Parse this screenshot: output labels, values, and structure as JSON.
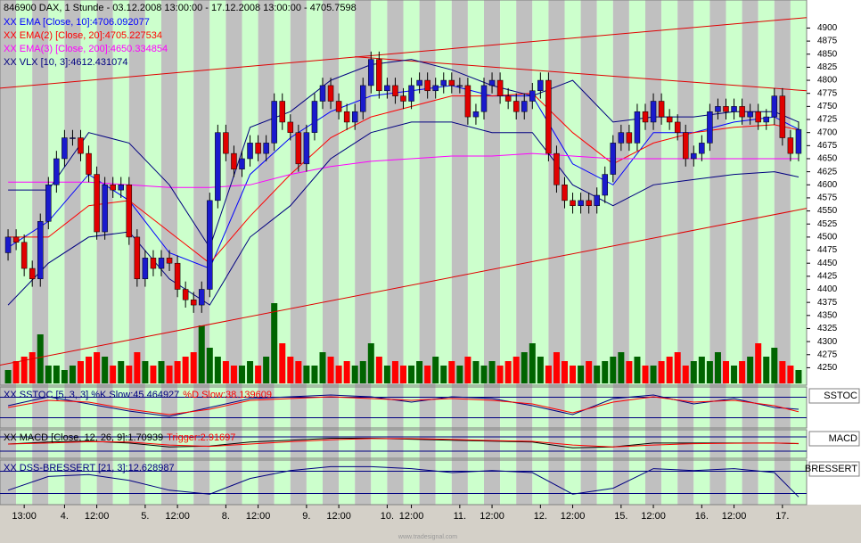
{
  "chart_data": {
    "type": "candlestick",
    "title": "846900  DAX, 1 Stunde - 03.12.2008 13:00:00 - 17.12.2008 13:00:00 - 4705.7598",
    "footer": "www.tradesignal.com",
    "up_color": "#1a1acc",
    "down_color": "#e00000",
    "volume_up_color": "#006400",
    "volume_down_color": "#ff0000",
    "xlim": [
      -1,
      99
    ],
    "ylim": [
      4220,
      4940
    ],
    "yticks": [
      4250,
      4275,
      4300,
      4325,
      4350,
      4375,
      4400,
      4425,
      4450,
      4475,
      4500,
      4525,
      4550,
      4575,
      4600,
      4625,
      4650,
      4675,
      4700,
      4725,
      4750,
      4775,
      4800,
      4825,
      4850,
      4875,
      4900
    ],
    "xticks": [
      {
        "value": 2,
        "label": "13:00"
      },
      {
        "value": 7,
        "label": "4."
      },
      {
        "value": 11,
        "label": "12:00"
      },
      {
        "value": 17,
        "label": "5."
      },
      {
        "value": 21,
        "label": "12:00"
      },
      {
        "value": 27,
        "label": "8."
      },
      {
        "value": 31,
        "label": "12:00"
      },
      {
        "value": 37,
        "label": "9."
      },
      {
        "value": 41,
        "label": "12:00"
      },
      {
        "value": 47,
        "label": "10."
      },
      {
        "value": 50,
        "label": "12:00"
      },
      {
        "value": 56,
        "label": "11."
      },
      {
        "value": 60,
        "label": "12:00"
      },
      {
        "value": 66,
        "label": "12."
      },
      {
        "value": 70,
        "label": "12:00"
      },
      {
        "value": 76,
        "label": "15."
      },
      {
        "value": 80,
        "label": "12:00"
      },
      {
        "value": 86,
        "label": "16."
      },
      {
        "value": 90,
        "label": "12:00"
      },
      {
        "value": 96,
        "label": "17."
      }
    ],
    "open": [
      4470,
      4500,
      4490,
      4440,
      4420,
      4530,
      4600,
      4650,
      4690,
      4690,
      4660,
      4620,
      4510,
      4600,
      4590,
      4600,
      4500,
      4420,
      4460,
      4440,
      4460,
      4450,
      4400,
      4380,
      4370,
      4400,
      4570,
      4700,
      4660,
      4630,
      4650,
      4680,
      4660,
      4680,
      4760,
      4720,
      4700,
      4640,
      4700,
      4760,
      4790,
      4760,
      4740,
      4720,
      4740,
      4790,
      4840,
      4780,
      4790,
      4770,
      4760,
      4790,
      4800,
      4780,
      4790,
      4800,
      4790,
      4790,
      4730,
      4740,
      4790,
      4800,
      4770,
      4760,
      4740,
      4760,
      4780,
      4800,
      4660,
      4600,
      4570,
      4560,
      4570,
      4560,
      4580,
      4620,
      4680,
      4700,
      4680,
      4740,
      4720,
      4760,
      4730,
      4720,
      4700,
      4650,
      4660,
      4680,
      4740,
      4750,
      4740,
      4750,
      4730,
      4740,
      4720,
      4730,
      4770,
      4690,
      4660
    ],
    "high": [
      4515,
      4515,
      4505,
      4455,
      4545,
      4615,
      4665,
      4705,
      4705,
      4705,
      4675,
      4635,
      4615,
      4615,
      4615,
      4615,
      4515,
      4475,
      4475,
      4475,
      4475,
      4465,
      4415,
      4395,
      4415,
      4585,
      4715,
      4715,
      4675,
      4665,
      4695,
      4695,
      4695,
      4775,
      4775,
      4735,
      4715,
      4715,
      4775,
      4805,
      4805,
      4775,
      4755,
      4755,
      4805,
      4855,
      4855,
      4805,
      4805,
      4785,
      4805,
      4815,
      4815,
      4805,
      4815,
      4815,
      4805,
      4805,
      4755,
      4805,
      4815,
      4815,
      4785,
      4775,
      4775,
      4795,
      4815,
      4815,
      4675,
      4615,
      4585,
      4585,
      4585,
      4595,
      4635,
      4695,
      4715,
      4715,
      4755,
      4755,
      4775,
      4775,
      4745,
      4735,
      4715,
      4675,
      4695,
      4755,
      4765,
      4765,
      4765,
      4765,
      4755,
      4755,
      4745,
      4785,
      4785,
      4705,
      4721
    ],
    "low": [
      4455,
      4475,
      4425,
      4405,
      4405,
      4515,
      4585,
      4635,
      4675,
      4645,
      4605,
      4495,
      4495,
      4575,
      4575,
      4485,
      4405,
      4405,
      4425,
      4425,
      4435,
      4385,
      4365,
      4355,
      4355,
      4385,
      4555,
      4645,
      4615,
      4615,
      4635,
      4645,
      4645,
      4665,
      4705,
      4685,
      4625,
      4625,
      4685,
      4745,
      4745,
      4725,
      4705,
      4705,
      4725,
      4775,
      4765,
      4765,
      4755,
      4745,
      4745,
      4775,
      4765,
      4765,
      4775,
      4775,
      4775,
      4715,
      4715,
      4725,
      4775,
      4755,
      4745,
      4725,
      4725,
      4745,
      4765,
      4645,
      4585,
      4555,
      4545,
      4545,
      4545,
      4545,
      4565,
      4605,
      4665,
      4665,
      4665,
      4705,
      4705,
      4715,
      4705,
      4685,
      4635,
      4635,
      4645,
      4665,
      4725,
      4725,
      4725,
      4715,
      4715,
      4705,
      4705,
      4715,
      4675,
      4645,
      4645
    ],
    "close": [
      4500,
      4490,
      4440,
      4420,
      4530,
      4600,
      4650,
      4690,
      4690,
      4660,
      4620,
      4510,
      4600,
      4590,
      4600,
      4500,
      4420,
      4460,
      4440,
      4460,
      4450,
      4400,
      4380,
      4370,
      4400,
      4570,
      4700,
      4660,
      4630,
      4650,
      4680,
      4660,
      4680,
      4760,
      4720,
      4700,
      4640,
      4700,
      4760,
      4790,
      4760,
      4740,
      4720,
      4740,
      4790,
      4840,
      4780,
      4790,
      4770,
      4760,
      4790,
      4800,
      4780,
      4790,
      4800,
      4790,
      4790,
      4730,
      4740,
      4790,
      4800,
      4770,
      4760,
      4740,
      4760,
      4780,
      4800,
      4660,
      4600,
      4570,
      4560,
      4570,
      4560,
      4580,
      4620,
      4680,
      4700,
      4680,
      4740,
      4720,
      4760,
      4730,
      4720,
      4700,
      4650,
      4660,
      4680,
      4740,
      4750,
      4740,
      4750,
      4730,
      4740,
      4720,
      4730,
      4770,
      4690,
      4660,
      4706
    ],
    "volume_ylim": [
      0,
      100
    ],
    "volume": [
      15,
      25,
      30,
      35,
      55,
      20,
      20,
      15,
      20,
      25,
      30,
      35,
      30,
      20,
      25,
      20,
      35,
      25,
      20,
      25,
      20,
      25,
      30,
      35,
      65,
      40,
      30,
      25,
      20,
      20,
      25,
      20,
      30,
      90,
      45,
      30,
      25,
      20,
      20,
      35,
      30,
      20,
      25,
      20,
      25,
      45,
      30,
      20,
      25,
      20,
      20,
      25,
      20,
      30,
      20,
      25,
      20,
      30,
      25,
      20,
      25,
      20,
      25,
      30,
      35,
      45,
      30,
      20,
      35,
      25,
      20,
      20,
      25,
      20,
      25,
      30,
      35,
      25,
      30,
      20,
      20,
      25,
      30,
      35,
      20,
      25,
      30,
      25,
      35,
      25,
      20,
      25,
      30,
      45,
      30,
      40,
      25,
      20,
      15
    ],
    "line_x": [
      0,
      5,
      10,
      15,
      20,
      25,
      30,
      35,
      40,
      45,
      50,
      55,
      60,
      65,
      70,
      75,
      80,
      85,
      90,
      95,
      98
    ],
    "series": [
      {
        "name": "XX EMA [Close, 10]:4706.092077",
        "color": "#0000ff",
        "values": [
          4480,
          4530,
          4620,
          4570,
          4470,
          4440,
          4620,
          4690,
          4740,
          4770,
          4780,
          4790,
          4770,
          4770,
          4640,
          4600,
          4700,
          4700,
          4720,
          4730,
          4706
        ]
      },
      {
        "name": "XX EMA(2) [Close, 20]:4705.227534",
        "color": "#ff0000",
        "values": [
          4500,
          4500,
          4560,
          4570,
          4510,
          4450,
          4540,
          4620,
          4690,
          4730,
          4750,
          4770,
          4770,
          4775,
          4700,
          4640,
          4680,
          4700,
          4710,
          4715,
          4705
        ]
      },
      {
        "name": "XX EMA(3) [Close, 200]:4650.334854",
        "color": "#ff00ff",
        "values": [
          4605,
          4605,
          4605,
          4600,
          4595,
          4595,
          4600,
          4620,
          4635,
          4645,
          4650,
          4655,
          4655,
          4660,
          4655,
          4650,
          4650,
          4650,
          4650,
          4650,
          4650
        ]
      },
      {
        "name": "XX VLX [10, 3]:4612.431074",
        "color": "#000080",
        "values": [
          4590,
          4590,
          4700,
          4680,
          4600,
          4480,
          4710,
          4740,
          4800,
          4830,
          4840,
          4820,
          4790,
          4770,
          4800,
          4720,
          4730,
          4730,
          4740,
          4740,
          4720
        ],
        "lower": [
          4370,
          4450,
          4500,
          4510,
          4420,
          4370,
          4500,
          4560,
          4650,
          4700,
          4720,
          4720,
          4700,
          4700,
          4600,
          4560,
          4600,
          4610,
          4620,
          4625,
          4615
        ]
      }
    ],
    "trendlines": [
      {
        "color": "#e00000",
        "x": [
          -1,
          99
        ],
        "values": [
          4785,
          4920
        ]
      },
      {
        "color": "#e00000",
        "x": [
          -1,
          99
        ],
        "values": [
          4255,
          4555
        ]
      },
      {
        "color": "#e00000",
        "x": [
          43,
          99
        ],
        "values": [
          4845,
          4780
        ]
      }
    ],
    "panels": [
      {
        "tag": "SSTOC",
        "ylim": [
          0,
          100
        ],
        "series": [
          {
            "name": "XX SSTOC [5, 3, 3] %K Slow:45.464927",
            "color": "#000080",
            "values": [
              55,
              80,
              60,
              40,
              25,
              50,
              75,
              80,
              85,
              80,
              65,
              80,
              75,
              55,
              30,
              75,
              85,
              60,
              75,
              50,
              45
            ]
          },
          {
            "name": "%D Slow:38.139609",
            "color": "#ff0000",
            "values": [
              50,
              70,
              65,
              45,
              30,
              45,
              70,
              75,
              80,
              75,
              70,
              75,
              70,
              60,
              35,
              65,
              80,
              65,
              70,
              55,
              38
            ]
          }
        ]
      },
      {
        "tag": "MACD",
        "ylim": [
          -60,
          60
        ],
        "series": [
          {
            "name": "XX MACD [Close, 12, 26, 9]:1.70939",
            "color": "#000000",
            "values": [
              0,
              10,
              15,
              5,
              -15,
              -10,
              10,
              20,
              30,
              30,
              25,
              20,
              15,
              10,
              -20,
              -15,
              5,
              5,
              5,
              5,
              1.7
            ]
          },
          {
            "name": "Trigger:2.91697",
            "color": "#ff0000",
            "values": [
              0,
              5,
              12,
              10,
              -5,
              -12,
              0,
              12,
              22,
              28,
              28,
              24,
              18,
              14,
              -5,
              -15,
              -5,
              2,
              4,
              5,
              2.9
            ]
          }
        ]
      },
      {
        "tag": "BRESSERT",
        "ylim": [
          0,
          100
        ],
        "series": [
          {
            "name": "XX DSS-BRESSERT [21, 3]:12.628987",
            "color": "#000080",
            "values": [
              30,
              65,
              70,
              55,
              30,
              20,
              60,
              80,
              90,
              90,
              85,
              75,
              80,
              75,
              20,
              35,
              85,
              80,
              85,
              75,
              13
            ]
          }
        ]
      }
    ]
  }
}
